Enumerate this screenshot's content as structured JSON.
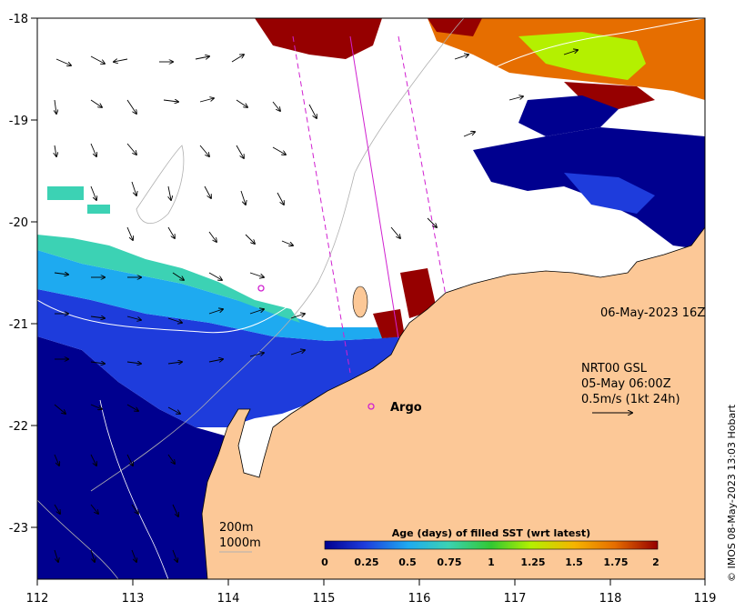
{
  "map": {
    "x_tick_labels": [
      "112",
      "113",
      "114",
      "115",
      "116",
      "117",
      "118",
      "119"
    ],
    "y_tick_labels": [
      "-18",
      "-19",
      "-20",
      "-21",
      "-22",
      "-23"
    ],
    "lon_range": [
      112,
      119
    ],
    "lat_range": [
      -23.5,
      -18
    ],
    "timestamp": "06-May-2023 16Z",
    "current_info": {
      "line1": "NRT00 GSL",
      "line2": "05-May 06:00Z",
      "line3": "0.5m/s (1kt 24h)"
    },
    "argo_label": "Argo",
    "isobaths": {
      "shallow": "200m",
      "deep": "1000m"
    },
    "colorbar": {
      "title": "Age (days) of filled SST (wrt latest)",
      "tick_labels": [
        "0",
        "0.25",
        "0.5",
        "0.75",
        "1",
        "1.25",
        "1.5",
        "1.75",
        "2"
      ],
      "range": [
        0,
        2
      ]
    },
    "copyright": "© IMOS 08-May-2023 13:03 Hobart",
    "colors": {
      "land": "#fcc897",
      "age_0": "#00008f",
      "age_025": "#1e3cdc",
      "age_05": "#1eaaf0",
      "age_075": "#3cd2b4",
      "age_1": "#32c832",
      "age_125": "#b4f000",
      "age_15": "#f5b400",
      "age_175": "#e66e00",
      "age_2": "#960000",
      "track": "#d020d0"
    }
  }
}
